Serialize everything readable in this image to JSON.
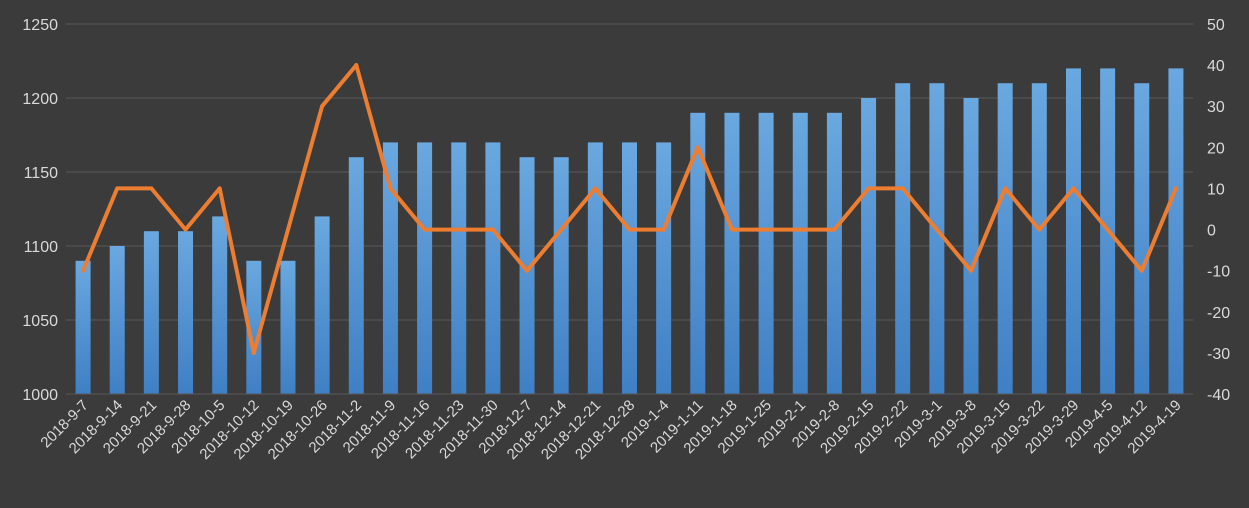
{
  "chart_data": {
    "type": "bar",
    "categories": [
      "2018-9-7",
      "2018-9-14",
      "2018-9-21",
      "2018-9-28",
      "2018-10-5",
      "2018-10-12",
      "2018-10-19",
      "2018-10-26",
      "2018-11-2",
      "2018-11-9",
      "2018-11-16",
      "2018-11-23",
      "2018-11-30",
      "2018-12-7",
      "2018-12-14",
      "2018-12-21",
      "2018-12-28",
      "2019-1-4",
      "2019-1-11",
      "2019-1-18",
      "2019-1-25",
      "2019-2-1",
      "2019-2-8",
      "2019-2-15",
      "2019-2-22",
      "2019-3-1",
      "2019-3-8",
      "2019-3-15",
      "2019-3-22",
      "2019-3-29",
      "2019-4-5",
      "2019-4-12",
      "2019-4-19"
    ],
    "series": [
      {
        "type": "bar",
        "axis": "left",
        "color": "#5b9bd5",
        "values": [
          1090,
          1100,
          1110,
          1110,
          1120,
          1090,
          1090,
          1120,
          1160,
          1170,
          1170,
          1170,
          1170,
          1160,
          1160,
          1170,
          1170,
          1170,
          1190,
          1190,
          1190,
          1190,
          1190,
          1200,
          1210,
          1210,
          1200,
          1210,
          1210,
          1220,
          1220,
          1210,
          1220
        ]
      },
      {
        "type": "line",
        "axis": "right",
        "color": "#ed7d31",
        "values": [
          -10,
          10,
          10,
          0,
          10,
          -30,
          0,
          30,
          40,
          10,
          0,
          0,
          0,
          -10,
          0,
          10,
          0,
          0,
          20,
          0,
          0,
          0,
          0,
          10,
          10,
          0,
          -10,
          10,
          0,
          10,
          0,
          -10,
          10
        ]
      }
    ],
    "y_left": {
      "min": 1000,
      "max": 1250,
      "step": 50,
      "ticks": [
        "1000",
        "1050",
        "1100",
        "1150",
        "1200",
        "1250"
      ]
    },
    "y_right": {
      "min": -40,
      "max": 50,
      "step": 10,
      "ticks": [
        "-40",
        "-30",
        "-20",
        "-10",
        "0",
        "10",
        "20",
        "30",
        "40",
        "50"
      ]
    },
    "title": "",
    "xlabel": "",
    "ylabel": "",
    "grid": true,
    "legend": "none"
  },
  "colors": {
    "background": "#3b3b3b",
    "grid": "#5a5a5a",
    "axis_text": "#d9d9d9",
    "bar_top": "#6aa8e0",
    "bar_bottom": "#3f7fc4",
    "line": "#ed7d31"
  }
}
